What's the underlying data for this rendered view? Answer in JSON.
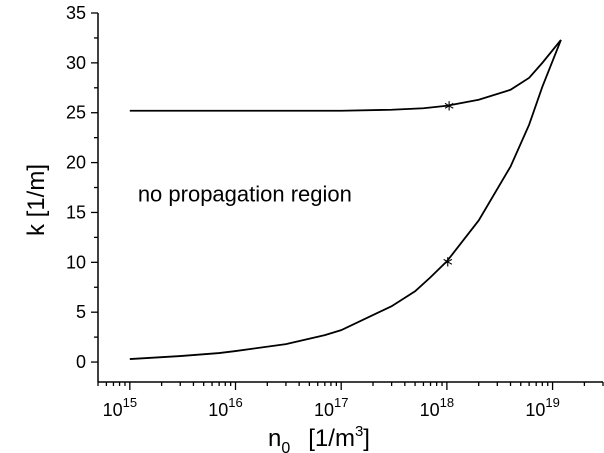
{
  "chart_data": {
    "type": "line",
    "xscale": "log",
    "xlim": [
      500000000000000.0,
      3e+19
    ],
    "ylim": [
      -2,
      35
    ],
    "grid": false,
    "title": "",
    "xlabel": {
      "base": "n",
      "sub": "0",
      "unit_prefix": "[1/m",
      "unit_sup": "3",
      "unit_suffix": "]"
    },
    "ylabel": "k   [1/m]",
    "y_ticks": [
      0,
      5,
      10,
      15,
      20,
      25,
      30,
      35
    ],
    "x_ticks": [
      {
        "value": 1000000000000000.0,
        "base": "10",
        "exp": "15"
      },
      {
        "value": 1e+16,
        "base": "10",
        "exp": "16"
      },
      {
        "value": 1e+17,
        "base": "10",
        "exp": "17"
      },
      {
        "value": 1e+18,
        "base": "10",
        "exp": "18"
      },
      {
        "value": 1e+19,
        "base": "10",
        "exp": "19"
      }
    ],
    "series": [
      {
        "x": [
          1000000000000000.0,
          1e+16,
          1e+17,
          3e+17,
          6e+17,
          1e+18,
          2e+18,
          4e+18,
          6e+18,
          8e+18,
          1.2e+19
        ],
        "y": [
          25.2,
          25.2,
          25.2,
          25.3,
          25.45,
          25.7,
          26.3,
          27.3,
          28.5,
          30.0,
          32.3
        ]
      },
      {
        "x": [
          1000000000000000.0,
          3000000000000000.0,
          7000000000000000.0,
          1e+16,
          3e+16,
          7e+16,
          1e+17,
          3e+17,
          5e+17,
          7e+17,
          1e+18,
          2e+18,
          4e+18,
          6e+18,
          8e+18,
          1.2e+19
        ],
        "y": [
          0.3,
          0.6,
          0.9,
          1.1,
          1.8,
          2.7,
          3.2,
          5.6,
          7.1,
          8.5,
          10.1,
          14.2,
          19.6,
          23.8,
          27.6,
          32.3
        ]
      }
    ],
    "markers": [
      {
        "x": 1.05e+18,
        "y": 25.7,
        "symbol": "*"
      },
      {
        "x": 1.02e+18,
        "y": 10.1,
        "symbol": "*"
      }
    ],
    "annotations": [
      {
        "text": "no propagation region",
        "x": 1000000000000000.0,
        "y": 16.1
      }
    ]
  }
}
